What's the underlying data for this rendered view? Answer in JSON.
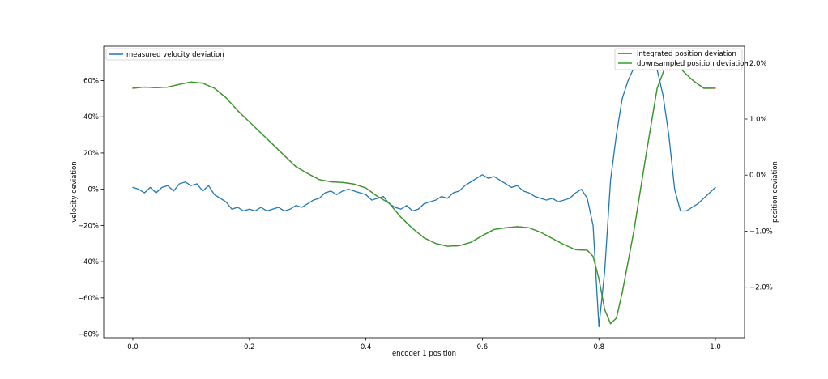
{
  "chart_data": {
    "type": "line",
    "title": "",
    "xlabel": "encoder 1 position",
    "ylabel": "velocity deviation",
    "y2label": "position deviation",
    "xlim": [
      -0.05,
      1.05
    ],
    "ylim": [
      -0.82,
      0.79
    ],
    "y2lim": [
      -2.9,
      2.3
    ],
    "x_ticks": [
      {
        "value": 0.0,
        "label": "0.0"
      },
      {
        "value": 0.2,
        "label": "0.2"
      },
      {
        "value": 0.4,
        "label": "0.4"
      },
      {
        "value": 0.6,
        "label": "0.6"
      },
      {
        "value": 0.8,
        "label": "0.8"
      },
      {
        "value": 1.0,
        "label": "1.0"
      }
    ],
    "y_ticks": [
      {
        "value": 0.6,
        "label": "60%"
      },
      {
        "value": 0.4,
        "label": "40%"
      },
      {
        "value": 0.2,
        "label": "20%"
      },
      {
        "value": 0.0,
        "label": "0%"
      },
      {
        "value": -0.2,
        "label": "−20%"
      },
      {
        "value": -0.4,
        "label": "−40%"
      },
      {
        "value": -0.6,
        "label": "−60%"
      },
      {
        "value": -0.8,
        "label": "−80%"
      }
    ],
    "y2_ticks": [
      {
        "value": 2.0,
        "label": "2.0%"
      },
      {
        "value": 1.0,
        "label": "1.0%"
      },
      {
        "value": 0.0,
        "label": "0.0%"
      },
      {
        "value": -1.0,
        "label": "−1.0%"
      },
      {
        "value": -2.0,
        "label": "−2.0%"
      }
    ],
    "legend_left": {
      "placement": "upper-left",
      "entries": [
        "measured velocity deviation"
      ]
    },
    "legend_right": {
      "placement": "upper-right",
      "entries": [
        "integrated position deviation",
        "downsampled position deviation"
      ]
    },
    "series": [
      {
        "name": "measured velocity deviation",
        "axis": "left",
        "color": "#1f77b4",
        "x": [
          0.0,
          0.01,
          0.02,
          0.03,
          0.04,
          0.05,
          0.06,
          0.07,
          0.08,
          0.09,
          0.1,
          0.11,
          0.12,
          0.13,
          0.14,
          0.15,
          0.16,
          0.17,
          0.18,
          0.19,
          0.2,
          0.21,
          0.22,
          0.23,
          0.24,
          0.25,
          0.26,
          0.27,
          0.28,
          0.29,
          0.3,
          0.31,
          0.32,
          0.33,
          0.34,
          0.35,
          0.36,
          0.37,
          0.38,
          0.39,
          0.4,
          0.41,
          0.42,
          0.43,
          0.44,
          0.45,
          0.46,
          0.47,
          0.48,
          0.49,
          0.5,
          0.51,
          0.52,
          0.53,
          0.54,
          0.55,
          0.56,
          0.57,
          0.58,
          0.59,
          0.6,
          0.61,
          0.62,
          0.63,
          0.64,
          0.65,
          0.66,
          0.67,
          0.68,
          0.69,
          0.7,
          0.71,
          0.72,
          0.73,
          0.74,
          0.75,
          0.76,
          0.77,
          0.78,
          0.79,
          0.8,
          0.81,
          0.815,
          0.82,
          0.83,
          0.84,
          0.85,
          0.86,
          0.87,
          0.88,
          0.89,
          0.9,
          0.91,
          0.92,
          0.93,
          0.94,
          0.95,
          0.96,
          0.97,
          0.98,
          0.99,
          1.0
        ],
        "values": [
          0.01,
          0.0,
          -0.02,
          0.01,
          -0.02,
          0.01,
          0.02,
          -0.01,
          0.03,
          0.04,
          0.02,
          0.03,
          -0.01,
          0.02,
          -0.03,
          -0.05,
          -0.07,
          -0.11,
          -0.1,
          -0.12,
          -0.11,
          -0.12,
          -0.1,
          -0.12,
          -0.11,
          -0.1,
          -0.12,
          -0.11,
          -0.09,
          -0.1,
          -0.08,
          -0.06,
          -0.05,
          -0.02,
          -0.01,
          -0.03,
          -0.01,
          0.0,
          -0.01,
          -0.02,
          -0.03,
          -0.06,
          -0.05,
          -0.04,
          -0.08,
          -0.1,
          -0.11,
          -0.09,
          -0.12,
          -0.11,
          -0.08,
          -0.07,
          -0.06,
          -0.04,
          -0.05,
          -0.02,
          -0.01,
          0.02,
          0.04,
          0.06,
          0.08,
          0.06,
          0.07,
          0.05,
          0.03,
          0.01,
          0.02,
          -0.01,
          -0.02,
          -0.04,
          -0.05,
          -0.06,
          -0.05,
          -0.07,
          -0.06,
          -0.05,
          -0.02,
          0.0,
          -0.05,
          -0.2,
          -0.76,
          -0.45,
          -0.2,
          0.05,
          0.3,
          0.5,
          0.6,
          0.67,
          0.72,
          0.74,
          0.72,
          0.66,
          0.52,
          0.3,
          0.0,
          -0.12,
          -0.12,
          -0.1,
          -0.08,
          -0.05,
          -0.02,
          0.01
        ]
      },
      {
        "name": "integrated position deviation",
        "axis": "right",
        "color": "#d62728",
        "x": [
          0.0,
          0.02,
          0.04,
          0.06,
          0.08,
          0.1,
          0.12,
          0.14,
          0.16,
          0.18,
          0.2,
          0.22,
          0.24,
          0.26,
          0.28,
          0.3,
          0.32,
          0.34,
          0.36,
          0.38,
          0.4,
          0.42,
          0.44,
          0.46,
          0.48,
          0.5,
          0.52,
          0.54,
          0.56,
          0.58,
          0.6,
          0.62,
          0.64,
          0.66,
          0.68,
          0.7,
          0.72,
          0.74,
          0.76,
          0.78,
          0.79,
          0.8,
          0.81,
          0.82,
          0.83,
          0.84,
          0.86,
          0.88,
          0.9,
          0.92,
          0.94,
          0.96,
          0.98,
          1.0
        ],
        "values": [
          1.55,
          1.57,
          1.56,
          1.57,
          1.62,
          1.66,
          1.64,
          1.55,
          1.38,
          1.15,
          0.95,
          0.75,
          0.55,
          0.35,
          0.15,
          0.03,
          -0.08,
          -0.12,
          -0.13,
          -0.16,
          -0.23,
          -0.38,
          -0.5,
          -0.75,
          -0.95,
          -1.12,
          -1.22,
          -1.27,
          -1.26,
          -1.2,
          -1.08,
          -0.97,
          -0.94,
          -0.92,
          -0.94,
          -1.02,
          -1.13,
          -1.24,
          -1.33,
          -1.34,
          -1.45,
          -1.85,
          -2.4,
          -2.65,
          -2.55,
          -2.1,
          -1.0,
          0.3,
          1.55,
          2.1,
          1.9,
          1.7,
          1.55,
          1.55
        ]
      },
      {
        "name": "downsampled position deviation",
        "axis": "right",
        "color": "#2ca02c",
        "x": [
          0.0,
          0.02,
          0.04,
          0.06,
          0.08,
          0.1,
          0.12,
          0.14,
          0.16,
          0.18,
          0.2,
          0.22,
          0.24,
          0.26,
          0.28,
          0.3,
          0.32,
          0.34,
          0.36,
          0.38,
          0.4,
          0.42,
          0.44,
          0.46,
          0.48,
          0.5,
          0.52,
          0.54,
          0.56,
          0.58,
          0.6,
          0.62,
          0.64,
          0.66,
          0.68,
          0.7,
          0.72,
          0.74,
          0.76,
          0.78,
          0.79,
          0.8,
          0.81,
          0.82,
          0.83,
          0.84,
          0.86,
          0.88,
          0.9,
          0.92,
          0.94,
          0.96,
          0.98,
          0.995
        ],
        "values": [
          1.55,
          1.57,
          1.56,
          1.57,
          1.62,
          1.66,
          1.64,
          1.55,
          1.38,
          1.15,
          0.95,
          0.75,
          0.55,
          0.35,
          0.15,
          0.03,
          -0.08,
          -0.12,
          -0.13,
          -0.16,
          -0.23,
          -0.38,
          -0.5,
          -0.75,
          -0.95,
          -1.12,
          -1.22,
          -1.27,
          -1.26,
          -1.2,
          -1.08,
          -0.97,
          -0.94,
          -0.92,
          -0.94,
          -1.02,
          -1.13,
          -1.24,
          -1.33,
          -1.34,
          -1.45,
          -1.85,
          -2.4,
          -2.65,
          -2.55,
          -2.1,
          -1.0,
          0.3,
          1.55,
          2.1,
          1.9,
          1.7,
          1.55,
          1.55
        ]
      }
    ]
  }
}
